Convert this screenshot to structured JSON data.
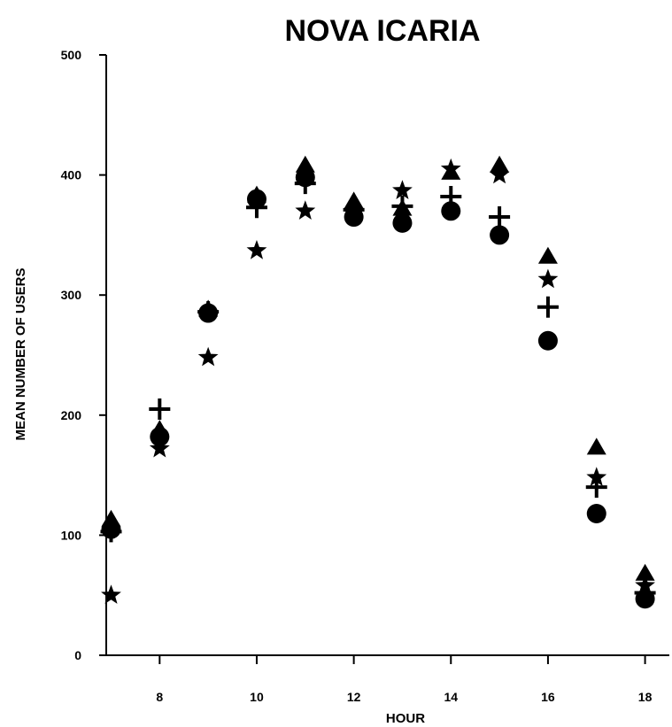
{
  "chart_data": {
    "type": "scatter",
    "title": "NOVA ICARIA",
    "xlabel": "HOUR",
    "ylabel": "MEAN NUMBER OF USERS",
    "xlim": [
      6.9,
      18.5
    ],
    "ylim": [
      0,
      500
    ],
    "xticks": [
      "8",
      "10",
      "12",
      "14",
      "16",
      "18"
    ],
    "xtick_values": [
      8,
      10,
      12,
      14,
      16,
      18
    ],
    "yticks": [
      "0",
      "100",
      "200",
      "300",
      "400",
      "500"
    ],
    "ytick_values": [
      0,
      100,
      200,
      300,
      400,
      500
    ],
    "grid": false,
    "series": [
      {
        "marker": "circle",
        "x": [
          7,
          8,
          9,
          10,
          11,
          12,
          13,
          14,
          15,
          16,
          17,
          18
        ],
        "y": [
          105,
          182,
          285,
          380,
          398,
          365,
          360,
          370,
          350,
          262,
          118,
          47
        ]
      },
      {
        "marker": "triangle",
        "x": [
          7,
          8,
          9,
          10,
          11,
          12,
          13,
          14,
          15,
          16,
          17,
          18
        ],
        "y": [
          113,
          188,
          288,
          383,
          408,
          378,
          372,
          402,
          408,
          332,
          173,
          68
        ]
      },
      {
        "marker": "plus",
        "x": [
          7,
          8,
          9,
          10,
          11,
          12,
          13,
          14,
          15,
          16,
          17,
          18
        ],
        "y": [
          103,
          205,
          286,
          373,
          393,
          371,
          374,
          382,
          365,
          290,
          140,
          52
        ]
      },
      {
        "marker": "star",
        "x": [
          7,
          8,
          9,
          10,
          11,
          12,
          13,
          14,
          15,
          16,
          17,
          18
        ],
        "y": [
          50,
          172,
          248,
          337,
          370,
          368,
          387,
          405,
          400,
          313,
          148,
          58
        ]
      }
    ]
  }
}
